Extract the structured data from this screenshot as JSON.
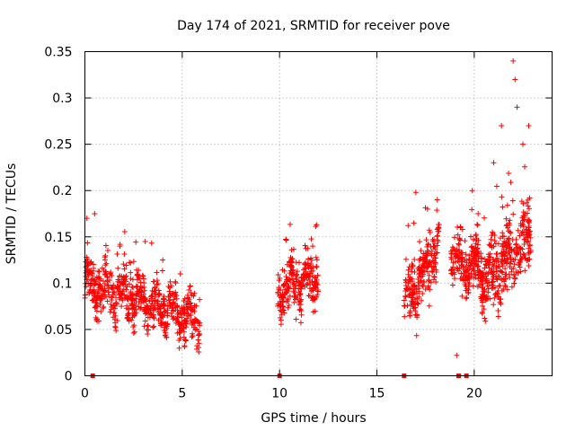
{
  "chart_data": {
    "type": "scatter",
    "title": "Day 174 of 2021, SRMTID for receiver pove",
    "xlabel": "GPS time / hours",
    "ylabel": "SRMTID / TECUs",
    "xlim": [
      0,
      24
    ],
    "ylim": [
      0,
      0.35
    ],
    "xticks": [
      0,
      5,
      10,
      15,
      20
    ],
    "xtick_labels": [
      "0",
      "5",
      "10",
      "15",
      "20"
    ],
    "yticks": [
      0,
      0.05,
      0.1,
      0.15,
      0.2,
      0.25,
      0.3,
      0.35
    ],
    "ytick_labels": [
      "0",
      "0.05",
      "0.1",
      "0.15",
      "0.2",
      "0.25",
      "0.3",
      "0.35"
    ],
    "grid": true,
    "marker": "+",
    "color": "#ff0000",
    "zero_markers_x": [
      0.4,
      10.0,
      16.4,
      19.2,
      19.6
    ],
    "series": [
      {
        "name": "SRMTID",
        "segments": [
          {
            "x_start": 0.0,
            "x_end": 5.9,
            "count": 700,
            "base_start": 0.1,
            "base_end": 0.06,
            "spread": 0.028,
            "spikes": [
              [
                0.1,
                0.17
              ],
              [
                0.5,
                0.175
              ],
              [
                3.1,
                0.145
              ],
              [
                1.8,
                0.14
              ],
              [
                4.0,
                0.125
              ],
              [
                4.9,
                0.11
              ]
            ]
          },
          {
            "x_start": 9.9,
            "x_end": 12.0,
            "count": 260,
            "base_start": 0.09,
            "base_end": 0.11,
            "spread": 0.028,
            "spikes": [
              [
                10.4,
                0.12
              ],
              [
                11.7,
                0.14
              ],
              [
                11.9,
                0.163
              ]
            ]
          },
          {
            "x_start": 16.4,
            "x_end": 18.2,
            "count": 230,
            "base_start": 0.08,
            "base_end": 0.14,
            "spread": 0.032,
            "spikes": [
              [
                17.0,
                0.198
              ],
              [
                17.6,
                0.18
              ],
              [
                18.1,
                0.19
              ],
              [
                16.9,
                0.165
              ]
            ]
          },
          {
            "x_start": 18.8,
            "x_end": 20.4,
            "count": 210,
            "base_start": 0.12,
            "base_end": 0.12,
            "spread": 0.03,
            "spikes": [
              [
                19.1,
                0.022
              ],
              [
                19.9,
                0.2
              ],
              [
                20.2,
                0.175
              ],
              [
                19.3,
                0.16
              ]
            ]
          },
          {
            "x_start": 20.4,
            "x_end": 22.9,
            "count": 360,
            "base_start": 0.1,
            "base_end": 0.15,
            "spread": 0.045,
            "spikes": [
              [
                22.0,
                0.34
              ],
              [
                22.1,
                0.32
              ],
              [
                21.4,
                0.27
              ],
              [
                22.8,
                0.27
              ],
              [
                22.2,
                0.29
              ],
              [
                21.0,
                0.23
              ],
              [
                22.5,
                0.25
              ]
            ]
          }
        ]
      }
    ]
  }
}
